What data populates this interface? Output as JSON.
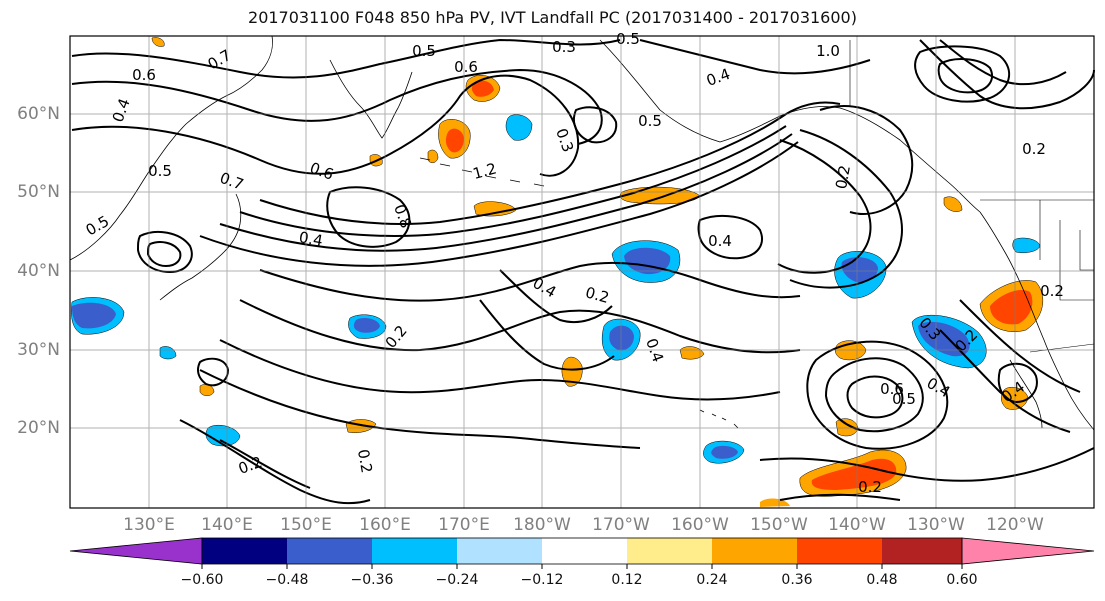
{
  "title": "2017031100 F048 850 hPa PV, IVT Landfall PC (2017031400 - 2017031600)",
  "map": {
    "lat_labels": [
      "60°N",
      "50°N",
      "40°N",
      "30°N",
      "20°N"
    ],
    "lon_labels": [
      "130°E",
      "140°E",
      "150°E",
      "160°E",
      "170°E",
      "180°W",
      "170°W",
      "160°W",
      "150°W",
      "140°W",
      "130°W",
      "120°W"
    ],
    "lat_range_deg": [
      10,
      70
    ],
    "lon_range": [
      "120°E",
      "110°W"
    ],
    "contour_labels": [
      "0.6",
      "0.7",
      "0.4",
      "0.5",
      "0.3",
      "0.5",
      "1.0",
      "0.4",
      "0.6",
      "1.2",
      "0.3",
      "0.5",
      "0.7",
      "0.5",
      "0.6",
      "0.8",
      "0.4",
      "0.5",
      "0.4",
      "0.2",
      "0.4",
      "0.2",
      "0.4",
      "0.2",
      "0.3",
      "0.2",
      "0.6",
      "0.5",
      "0.4",
      "0.4",
      "0.2",
      "0.2",
      "0.2",
      "0.2",
      "0.2"
    ],
    "fill_field_note": "shaded anomalies",
    "contour_color": "#000000",
    "grid": true
  },
  "colorbar": {
    "ticks": [
      "−0.60",
      "−0.48",
      "−0.36",
      "−0.24",
      "−0.12",
      "0.12",
      "0.24",
      "0.36",
      "0.48",
      "0.60"
    ],
    "colors": [
      "#9932cc",
      "#000080",
      "#3a5fcd",
      "#00bfff",
      "#b0e2ff",
      "#ffffff",
      "#ffec8b",
      "#ffa500",
      "#ff4500",
      "#b22222",
      "#ff82ab"
    ],
    "extend": "both"
  }
}
